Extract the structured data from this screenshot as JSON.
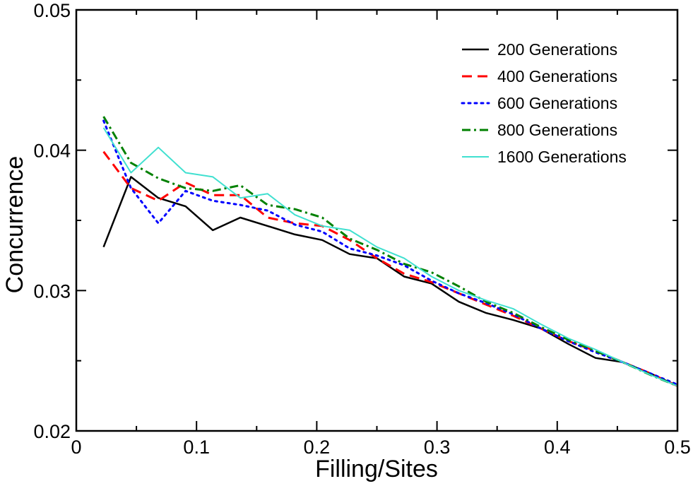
{
  "chart_data": {
    "type": "line",
    "title": "",
    "xlabel": "Filling/Sites",
    "ylabel": "Concurrence",
    "xlim": [
      0,
      0.5
    ],
    "ylim": [
      0.02,
      0.05
    ],
    "xticks": [
      0,
      0.1,
      0.2,
      0.3,
      0.4,
      0.5
    ],
    "xtick_labels": [
      "0",
      "0.1",
      "0.2",
      "0.3",
      "0.4",
      "0.5"
    ],
    "yticks": [
      0.02,
      0.03,
      0.04,
      0.05
    ],
    "ytick_labels": [
      "0.02",
      "0.03",
      "0.04",
      "0.05"
    ],
    "grid": false,
    "legend_position": "top-right",
    "x": [
      0.0227,
      0.0455,
      0.0682,
      0.0909,
      0.1136,
      0.1364,
      0.1591,
      0.1818,
      0.2045,
      0.2273,
      0.25,
      0.2727,
      0.2955,
      0.3182,
      0.3409,
      0.3636,
      0.3864,
      0.4091,
      0.4318,
      0.4545,
      0.4773,
      0.5
    ],
    "series": [
      {
        "name": "200 Generations",
        "color": "#000000",
        "dash": "solid",
        "values": [
          0.0331,
          0.0381,
          0.0366,
          0.036,
          0.0343,
          0.0352,
          0.0346,
          0.034,
          0.0336,
          0.0326,
          0.0323,
          0.031,
          0.0305,
          0.0292,
          0.0284,
          0.0279,
          0.0273,
          0.0262,
          0.0252,
          0.0249,
          0.0241,
          0.0232
        ]
      },
      {
        "name": "400 Generations",
        "color": "#ff0000",
        "dash": "dashed",
        "values": [
          0.0399,
          0.0373,
          0.0364,
          0.0377,
          0.0368,
          0.0368,
          0.0352,
          0.0348,
          0.0346,
          0.0336,
          0.0323,
          0.0312,
          0.0306,
          0.0298,
          0.029,
          0.0282,
          0.0273,
          0.0264,
          0.0257,
          0.0249,
          0.0241,
          0.0232
        ]
      },
      {
        "name": "600 Generations",
        "color": "#0000ff",
        "dash": "dotted",
        "values": [
          0.0421,
          0.0373,
          0.0348,
          0.0371,
          0.0364,
          0.0361,
          0.0357,
          0.0347,
          0.0342,
          0.033,
          0.0325,
          0.0318,
          0.0307,
          0.0298,
          0.0291,
          0.0283,
          0.0273,
          0.0264,
          0.0256,
          0.0249,
          0.0241,
          0.0233
        ]
      },
      {
        "name": "800 Generations",
        "color": "#008000",
        "dash": "dashdot",
        "values": [
          0.0424,
          0.0391,
          0.038,
          0.0373,
          0.0371,
          0.0375,
          0.0361,
          0.0358,
          0.0352,
          0.0337,
          0.0329,
          0.0319,
          0.0313,
          0.0303,
          0.0292,
          0.0284,
          0.0274,
          0.0265,
          0.0257,
          0.0249,
          0.024,
          0.0232
        ]
      },
      {
        "name": "1600 Generations",
        "color": "#40e0d0",
        "dash": "solid",
        "values": [
          0.0416,
          0.0384,
          0.0402,
          0.0384,
          0.0381,
          0.0366,
          0.0369,
          0.0354,
          0.0346,
          0.0343,
          0.0331,
          0.0323,
          0.031,
          0.03,
          0.0293,
          0.0287,
          0.0276,
          0.0266,
          0.0258,
          0.0249,
          0.024,
          0.0232
        ]
      }
    ]
  }
}
